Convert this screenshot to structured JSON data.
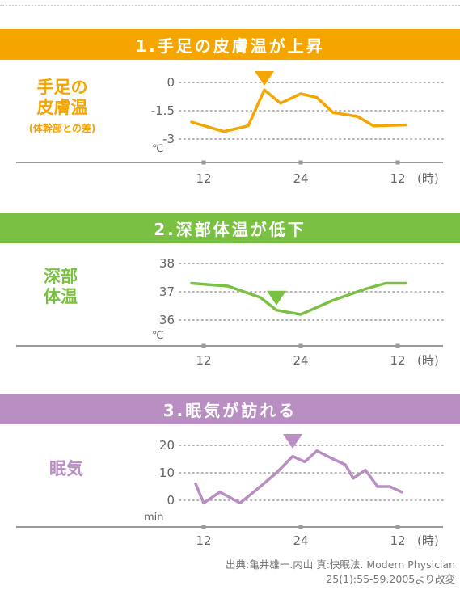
{
  "colors": {
    "panel1": "#f5a500",
    "panel2": "#7ac143",
    "panel3": "#b98ec2",
    "grid": "#9a9a9a",
    "axis": "#9a9a9a",
    "text": "#666666"
  },
  "panels": [
    {
      "title": "1.手足の皮膚温が上昇",
      "label_lines": [
        "手足の",
        "皮膚温"
      ],
      "label_note": "(体幹部との差)",
      "unit": "℃"
    },
    {
      "title": "2.深部体温が低下",
      "label_lines": [
        "深部",
        "体温"
      ],
      "label_note": "",
      "unit": "℃"
    },
    {
      "title": "3.眠気が訪れる",
      "label_lines": [
        "眠気"
      ],
      "label_note": "",
      "unit": "min"
    }
  ],
  "source": {
    "line1": "出典:亀井雄一.内山 真:快眠法. Modern Physician",
    "line2": "25(1):55-59.2005より改変"
  },
  "chart_data": [
    {
      "type": "line",
      "title": "1.手足の皮膚温が上昇",
      "ylabel": "℃",
      "xlabel": "(時)",
      "x_ticks": [
        "12",
        "24",
        "12"
      ],
      "x_tick_hours": [
        12,
        24,
        36
      ],
      "y_ticks": [
        "0",
        "-1.5",
        "-3"
      ],
      "y_tick_values": [
        0,
        -1.5,
        -3
      ],
      "xlim": [
        12.0,
        36.0
      ],
      "ylim": [
        -3.8,
        0.3
      ],
      "marker_x": 19.5,
      "series": [
        {
          "x": [
            10.5,
            14.5,
            17.5,
            19.5,
            21.5,
            24.0,
            26.0,
            28.0,
            31.0,
            33.0,
            37.0
          ],
          "y": [
            -2.1,
            -2.6,
            -2.3,
            -0.4,
            -1.1,
            -0.6,
            -0.8,
            -1.6,
            -1.8,
            -2.3,
            -2.25
          ]
        }
      ]
    },
    {
      "type": "line",
      "title": "2.深部体温が低下",
      "ylabel": "℃",
      "xlabel": "(時)",
      "x_ticks": [
        "12",
        "24",
        "12"
      ],
      "x_tick_hours": [
        12,
        24,
        36
      ],
      "y_ticks": [
        "38",
        "37",
        "36"
      ],
      "y_tick_values": [
        38,
        37,
        36
      ],
      "xlim": [
        12.0,
        36.0
      ],
      "ylim": [
        35.5,
        38.4
      ],
      "marker_x": 21.0,
      "series": [
        {
          "x": [
            10.5,
            15.0,
            19.0,
            21.0,
            24.0,
            28.0,
            32.0,
            34.5,
            37.0
          ],
          "y": [
            37.3,
            37.2,
            36.8,
            36.35,
            36.2,
            36.7,
            37.1,
            37.3,
            37.3
          ]
        }
      ]
    },
    {
      "type": "line",
      "title": "3.眠気が訪れる",
      "ylabel": "min",
      "xlabel": "(時)",
      "x_ticks": [
        "12",
        "24",
        "12"
      ],
      "x_tick_hours": [
        12,
        24,
        36
      ],
      "y_ticks": [
        "20",
        "10",
        "0"
      ],
      "y_tick_values": [
        20,
        10,
        0
      ],
      "xlim": [
        12.0,
        36.0
      ],
      "ylim": [
        -4,
        24
      ],
      "marker_x": 23.0,
      "series": [
        {
          "x": [
            11.0,
            12.0,
            14.0,
            16.5,
            19.0,
            21.0,
            23.0,
            24.5,
            26.0,
            28.0,
            29.5,
            30.5,
            32.0,
            33.5,
            35.0,
            36.5
          ],
          "y": [
            6,
            -1,
            3,
            -1,
            5,
            10,
            16,
            14,
            18,
            15,
            13,
            8,
            11,
            5,
            5,
            3
          ]
        }
      ]
    }
  ]
}
